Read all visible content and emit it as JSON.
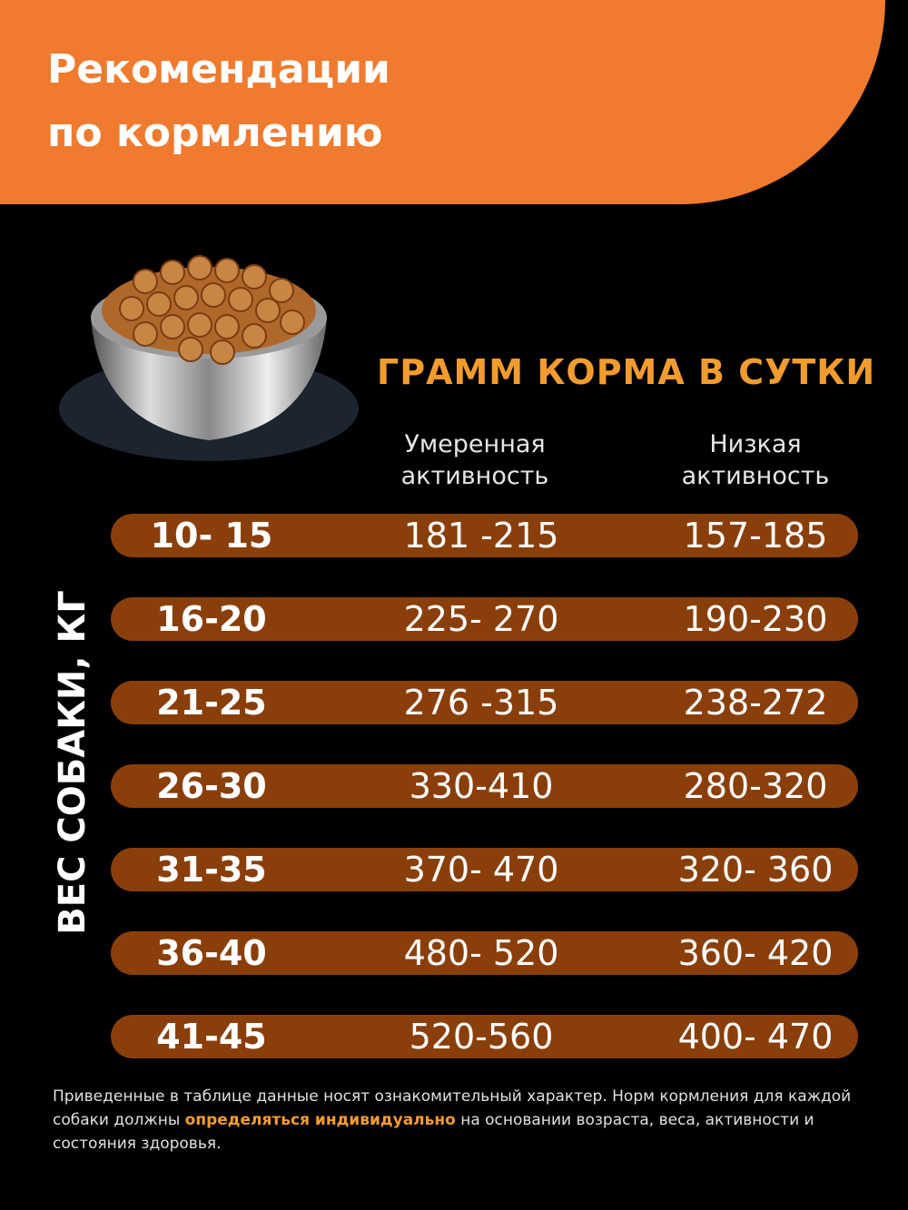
{
  "header": {
    "title_lines": [
      "Рекомендации",
      "по кормлению"
    ]
  },
  "table": {
    "heading": "ГРАММ КОРМА В СУТКИ",
    "columns": [
      [
        "Умеренная",
        "активность"
      ],
      [
        "Низкая",
        "активность"
      ]
    ],
    "row_axis_label": "ВЕС СОБАКИ, КГ",
    "rows": [
      [
        "10- 15",
        "181 -215",
        "157-185"
      ],
      [
        "16-20",
        "225- 270",
        "190-230"
      ],
      [
        "21-25",
        "276 -315",
        "238-272"
      ],
      [
        "26-30",
        "330-410",
        "280-320"
      ],
      [
        "31-35",
        "370- 470",
        "320- 360"
      ],
      [
        "36-40",
        "480- 520",
        "360- 420"
      ],
      [
        "41-45",
        "520-560",
        "400- 470"
      ]
    ]
  },
  "footnote": {
    "before": "Приведенные в таблице данные носят ознакомительный характер. Норм кормления для каждой собаки должны ",
    "highlight": "определяться индивидуально",
    "after": " на основании возраста, веса, активности и состояния здоровья."
  }
}
